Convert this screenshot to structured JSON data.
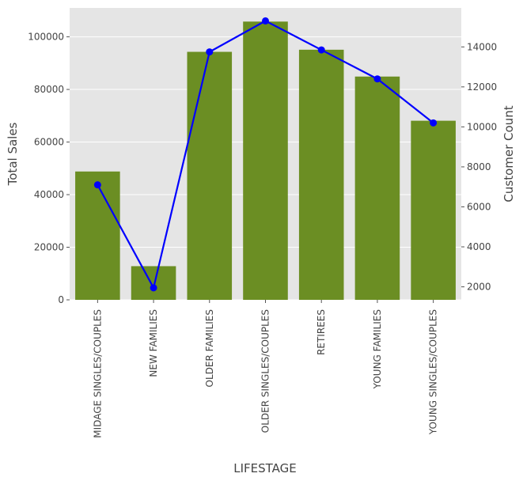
{
  "chart_data": {
    "type": "bar",
    "xlabel": "LIFESTAGE",
    "ylabel": "Total Sales",
    "ylabel_right": "Customer Count",
    "categories": [
      "MIDAGE SINGLES/COUPLES",
      "NEW FAMILIES",
      "OLDER FAMILIES",
      "OLDER SINGLES/COUPLES",
      "RETIREES",
      "YOUNG FAMILIES",
      "YOUNG SINGLES/COUPLES"
    ],
    "series": [
      {
        "type": "bar",
        "axis": "left",
        "color": "#6b8e23",
        "values": [
          48800,
          12800,
          94300,
          105800,
          95100,
          84900,
          68100
        ]
      },
      {
        "type": "line",
        "axis": "right",
        "color": "#0000ff",
        "values": [
          7100,
          1950,
          13750,
          15300,
          13850,
          12400,
          10200
        ]
      }
    ],
    "ylim": [
      0,
      111000
    ],
    "yticks": [
      "0",
      "20000",
      "40000",
      "60000",
      "80000",
      "100000"
    ],
    "ylim_right": [
      1350,
      15950
    ],
    "yticks_right": [
      "2000",
      "4000",
      "6000",
      "8000",
      "10000",
      "12000",
      "14000"
    ],
    "grid": true,
    "background": "#e5e5e5"
  }
}
